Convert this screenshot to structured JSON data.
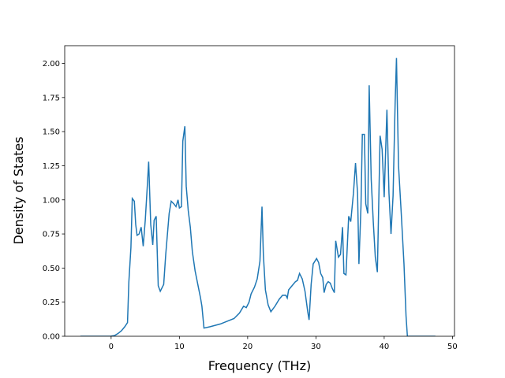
{
  "chart_data": {
    "type": "line",
    "xlabel": "Frequency (THz)",
    "ylabel": "Density of States",
    "xlim": [
      -6.8,
      50.3
    ],
    "ylim": [
      0,
      2.13
    ],
    "xticks": [
      0,
      10,
      20,
      30,
      40,
      50
    ],
    "yticks": [
      {
        "value": 0,
        "label": "0.00"
      },
      {
        "value": 0.25,
        "label": "0.25"
      },
      {
        "value": 0.5,
        "label": "0.50"
      },
      {
        "value": 0.75,
        "label": "0.75"
      },
      {
        "value": 1,
        "label": "1.00"
      },
      {
        "value": 1.25,
        "label": "1.25"
      },
      {
        "value": 1.5,
        "label": "1.50"
      },
      {
        "value": 1.75,
        "label": "1.75"
      },
      {
        "value": 2,
        "label": "2.00"
      }
    ],
    "series": [
      {
        "color": "#1f77b4",
        "x": [
          -4.5,
          -0.1,
          0.5,
          1,
          1.5,
          2,
          2.4,
          2.6,
          2.9,
          3.1,
          3.4,
          3.6,
          3.8,
          4.1,
          4.4,
          4.7,
          5.0,
          5.3,
          5.5,
          5.8,
          6.1,
          6.3,
          6.6,
          6.9,
          7.2,
          7.7,
          8.0,
          8.5,
          8.8,
          9.2,
          9.5,
          9.8,
          10.0,
          10.3,
          10.5,
          10.8,
          11.0,
          11.3,
          11.6,
          11.9,
          12.3,
          12.7,
          13.1,
          13.3,
          13.6,
          14.5,
          16,
          17,
          18,
          18.8,
          19.4,
          19.8,
          20.2,
          20.5,
          21,
          21.4,
          21.8,
          22.1,
          22.3,
          22.6,
          23,
          23.4,
          24,
          24.6,
          25.1,
          25.6,
          25.8,
          26.0,
          26.5,
          27.0,
          27.3,
          27.6,
          28.0,
          28.4,
          28.8,
          29.0,
          29.3,
          29.6,
          30.1,
          30.4,
          30.7,
          31.0,
          31.2,
          31.5,
          31.8,
          32.1,
          32.4,
          32.7,
          32.9,
          33.3,
          33.6,
          33.9,
          34.1,
          34.4,
          34.8,
          35.1,
          35.5,
          35.8,
          36.1,
          36.3,
          36.6,
          36.8,
          37.1,
          37.3,
          37.6,
          37.8,
          38.1,
          38.4,
          38.7,
          39.0,
          39.4,
          39.7,
          40.0,
          40.4,
          40.7,
          41.0,
          41.3,
          41.6,
          41.8,
          42.1,
          42.5,
          42.9,
          43.2,
          43.4,
          47.5
        ],
        "values": [
          0,
          0,
          0.005,
          0.02,
          0.04,
          0.07,
          0.1,
          0.4,
          0.65,
          1.01,
          0.99,
          0.82,
          0.74,
          0.75,
          0.8,
          0.66,
          0.85,
          1.1,
          1.28,
          0.82,
          0.67,
          0.85,
          0.88,
          0.37,
          0.33,
          0.38,
          0.6,
          0.9,
          0.99,
          0.97,
          0.95,
          1.0,
          0.94,
          0.95,
          1.43,
          1.54,
          1.1,
          0.92,
          0.8,
          0.62,
          0.48,
          0.38,
          0.28,
          0.22,
          0.06,
          0.07,
          0.09,
          0.11,
          0.13,
          0.17,
          0.22,
          0.21,
          0.25,
          0.31,
          0.36,
          0.42,
          0.55,
          0.95,
          0.6,
          0.34,
          0.23,
          0.18,
          0.22,
          0.27,
          0.3,
          0.3,
          0.28,
          0.34,
          0.37,
          0.4,
          0.41,
          0.46,
          0.42,
          0.33,
          0.18,
          0.12,
          0.38,
          0.53,
          0.57,
          0.54,
          0.46,
          0.43,
          0.32,
          0.38,
          0.4,
          0.39,
          0.35,
          0.32,
          0.7,
          0.58,
          0.6,
          0.8,
          0.46,
          0.45,
          0.88,
          0.84,
          1.05,
          1.27,
          1.05,
          0.53,
          0.95,
          1.48,
          1.48,
          0.97,
          0.9,
          1.84,
          1.15,
          0.84,
          0.58,
          0.47,
          1.47,
          1.37,
          1.02,
          1.66,
          1.05,
          0.75,
          1.03,
          1.7,
          2.04,
          1.25,
          0.9,
          0.53,
          0.15,
          0,
          0
        ]
      }
    ]
  }
}
